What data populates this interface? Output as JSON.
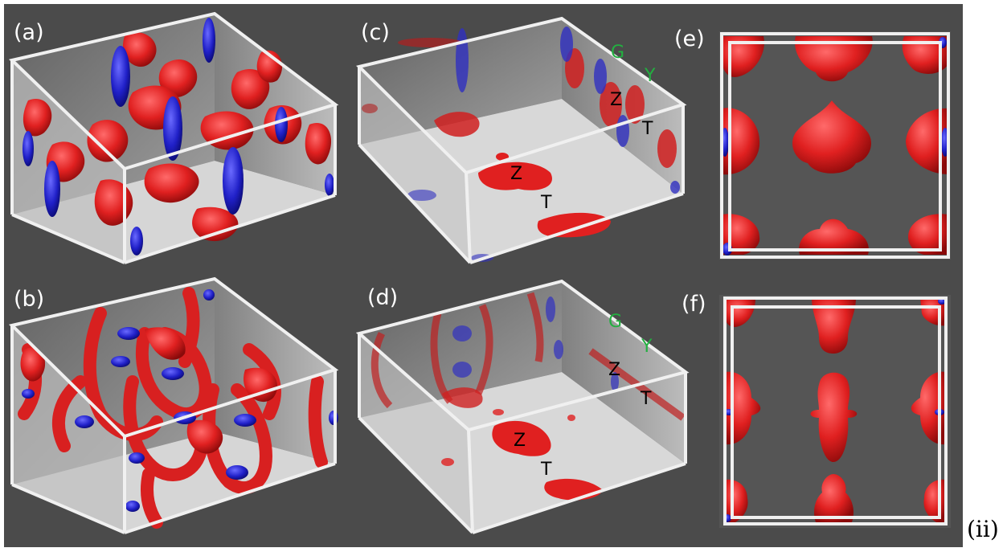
{
  "figure": {
    "outer_label": "(ii)",
    "panels": [
      {
        "id": "a",
        "label": "(a)"
      },
      {
        "id": "b",
        "label": "(b)"
      },
      {
        "id": "c",
        "label": "(c)",
        "points": [
          "G",
          "Y",
          "Z",
          "T",
          "Z",
          "T"
        ]
      },
      {
        "id": "d",
        "label": "(d)",
        "points": [
          "G",
          "Y",
          "Z",
          "T",
          "Z",
          "T"
        ]
      },
      {
        "id": "e",
        "label": "(e)"
      },
      {
        "id": "f",
        "label": "(f)"
      }
    ],
    "colors": {
      "background": "#4b4b4b",
      "red_surface": "#e02020",
      "blue_surface": "#2a2ad0",
      "box_edge": "#f0f0f0",
      "wall": "#c8c8c8",
      "floor": "#d8d8d8",
      "label_green": "#22b040",
      "label_black": "#000000"
    }
  }
}
